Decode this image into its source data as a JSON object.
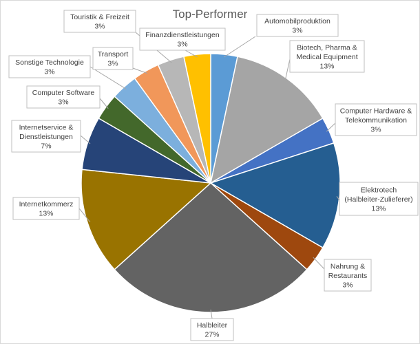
{
  "chart_data": {
    "type": "pie",
    "title": "Top-Performer",
    "slices": [
      {
        "label": "Automobilproduktion",
        "value_label": "3%",
        "value": 3.33,
        "color": "#5b9bd5"
      },
      {
        "label": "Biotech, Pharma & Medical Equipment",
        "value_label": "13%",
        "value": 13.33,
        "color": "#a5a5a5"
      },
      {
        "label": "Computer Hardware & Telekommunikation",
        "value_label": "3%",
        "value": 3.33,
        "color": "#4472c4"
      },
      {
        "label": "Elektrotech (Halbleiter-Zulieferer)",
        "value_label": "13%",
        "value": 13.33,
        "color": "#255e91"
      },
      {
        "label": "Nahrung & Restaurants",
        "value_label": "3%",
        "value": 3.33,
        "color": "#9e480e"
      },
      {
        "label": "Halbleiter",
        "value_label": "27%",
        "value": 26.67,
        "color": "#636363"
      },
      {
        "label": "Internetkommerz",
        "value_label": "13%",
        "value": 13.33,
        "color": "#997300"
      },
      {
        "label": "Internetservice & Dienstleistungen",
        "value_label": "7%",
        "value": 6.67,
        "color": "#264478"
      },
      {
        "label": "Computer Software",
        "value_label": "3%",
        "value": 3.33,
        "color": "#43682b"
      },
      {
        "label": "Sonstige Technologie",
        "value_label": "3%",
        "value": 3.33,
        "color": "#7cafdd"
      },
      {
        "label": "Transport",
        "value_label": "3%",
        "value": 3.33,
        "color": "#f1975a"
      },
      {
        "label": "Touristik & Freizeit",
        "value_label": "3%",
        "value": 3.33,
        "color": "#b7b7b7"
      },
      {
        "label": "Finanzdienstleistungen",
        "value_label": "3%",
        "value": 3.33,
        "color": "#ffc000"
      }
    ]
  }
}
